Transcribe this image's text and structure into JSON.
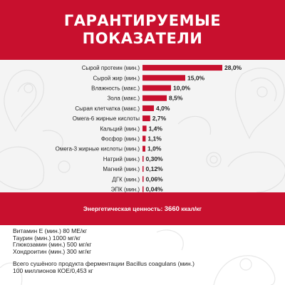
{
  "header": {
    "line1": "ГАРАНТИРУЕМЫЕ",
    "line2": "ПОКАЗАТЕЛИ"
  },
  "colors": {
    "accent": "#c8102e",
    "chart_bg": "#f4f4f4",
    "paisley": "#e2e2e2",
    "text": "#222222"
  },
  "chart_data": {
    "type": "bar",
    "orientation": "horizontal",
    "categories": [
      "Сырой протеин (мин.)",
      "Сырой жир (мин.)",
      "Влажность (макс.)",
      "Зола (макс.)",
      "Сырая клетчатка (макс.)",
      "Омега-6 жирные кислоты",
      "Кальций (мин.)",
      "Фосфор (мин.)",
      "Омега-3 жирные кислоты (мин.)",
      "Натрий (мин.)",
      "Магний (мин.)",
      "ДГК (мин.)",
      "ЭПК (мин.)"
    ],
    "series": [
      {
        "values": [
          28.0,
          15.0,
          10.0,
          8.5,
          4.0,
          2.7,
          1.4,
          1.1,
          1.0,
          0.3,
          0.12,
          0.06,
          0.04
        ]
      }
    ],
    "value_labels": [
      "28,0%",
      "15,0%",
      "10,0%",
      "8,5%",
      "4,0%",
      "2,7%",
      "1,4%",
      "1,1%",
      "1,0%",
      "0,30%",
      "0,12%",
      "0,06%",
      "0,04%"
    ],
    "xlim": [
      0,
      28.0
    ],
    "grid": false,
    "legend": "none"
  },
  "energy": {
    "label": "Энергетическая ценность:",
    "value": "3660",
    "unit": "ккал/кг"
  },
  "nutrients": [
    "Витамин E (мин.) 80 МЕ/кг",
    "Таурин (мин.) 1000 мг/кг",
    "Глюкозамин (мин.) 500 мг/кг",
    "Хондроитин (мин.) 300 мг/кг"
  ],
  "probiotic": {
    "line1": "Всего сушёного продукта ферментации Bacillus coagulans (мин.)",
    "line2": "100 миллионов КОЕ/0,453 кг"
  }
}
